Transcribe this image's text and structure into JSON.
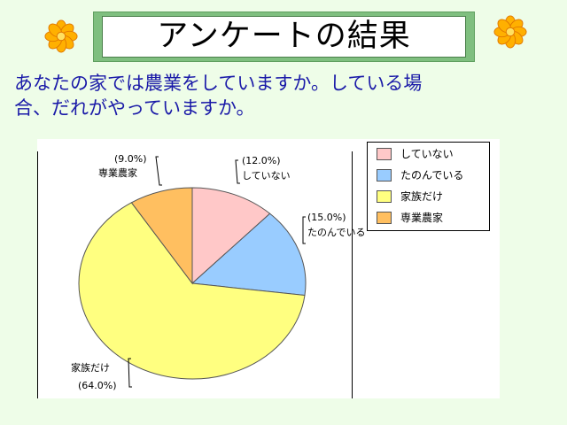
{
  "title": "アンケートの結果",
  "question_lines": [
    "あなたの家では農業をしていますか。している場",
    "合、だれがやっていますか。"
  ],
  "decorations": {
    "flower_left": "flower-icon",
    "flower_right": "flower-icon",
    "flower_color": "#ffb000"
  },
  "chart_data": {
    "type": "pie",
    "start_angle_deg": 0,
    "direction": "clockwise",
    "slices": [
      {
        "label": "していない",
        "value": 12.0,
        "value_text": "(12.0%)",
        "color": "#ffc8c8"
      },
      {
        "label": "たのんでいる",
        "value": 15.0,
        "value_text": "(15.0%)",
        "color": "#99ccff"
      },
      {
        "label": "家族だけ",
        "value": 64.0,
        "value_text": "(64.0%)",
        "color": "#ffff80"
      },
      {
        "label": "専業農家",
        "value": 9.0,
        "value_text": "(9.0%)",
        "color": "#ffbf60"
      }
    ],
    "legend": {
      "placement": "top-right",
      "entries": [
        "していない",
        "たのんでいる",
        "家族だけ",
        "専業農家"
      ]
    }
  }
}
